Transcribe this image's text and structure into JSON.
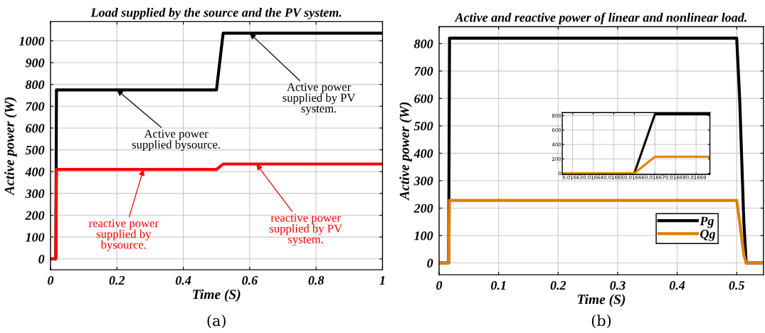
{
  "chart_data": [
    {
      "type": "line",
      "title": "Load supplied by the source and the PV system.",
      "xlabel": "Time (S)",
      "ylabel": "Active power (W)",
      "xlim": [
        0,
        1
      ],
      "ylim": [
        -50,
        1088
      ],
      "xticks": [
        0,
        0.2,
        0.4,
        0.6,
        0.8,
        1
      ],
      "yticks": [
        0,
        100,
        200,
        300,
        400,
        500,
        600,
        700,
        800,
        900,
        1000
      ],
      "grid": true,
      "legend": false,
      "x": [
        0,
        0.016,
        0.018,
        0.5,
        0.52,
        1
      ],
      "series": [
        {
          "color": "#000000",
          "values": [
            0,
            0,
            775,
            775,
            1035,
            1035
          ]
        },
        {
          "color": "#ff0000",
          "values": [
            0,
            0,
            410,
            410,
            435,
            435
          ]
        }
      ],
      "annotations": [
        {
          "text": "Active power\nsupplied bysource.",
          "x": 0.2,
          "y": 775
        },
        {
          "text": "Active power\nsupplied by PV\nsystem.",
          "x": 0.6,
          "y": 1035
        },
        {
          "text": "reactive power\nsupplied by\nbysource.",
          "x": 0.28,
          "y": 410
        },
        {
          "text": "reactive power\nsupplied by PV\nsystem.",
          "x": 0.62,
          "y": 435
        },
        "(a)"
      ]
    },
    {
      "type": "line",
      "title": "Active and reactive power of linear and nonlinear load.",
      "xlabel": "Time (S)",
      "ylabel": "Active power (W)",
      "xlim": [
        0,
        0.545
      ],
      "ylim": [
        -43,
        862
      ],
      "xticks": [
        0,
        0.1,
        0.2,
        0.3,
        0.4,
        0.5
      ],
      "yticks": [
        0,
        100,
        200,
        300,
        400,
        500,
        600,
        700,
        800
      ],
      "grid": true,
      "legend": "bottom right",
      "x": [
        0,
        0.016,
        0.0175,
        0.5,
        0.505,
        0.512,
        0.516,
        0.545
      ],
      "series": [
        {
          "name": "Pg",
          "color": "#000000",
          "values": [
            0,
            0,
            820,
            820,
            600,
            150,
            0,
            0
          ]
        },
        {
          "name": "Qg",
          "color": "#e08000",
          "values": [
            0,
            0,
            228,
            228,
            150,
            30,
            0,
            0
          ]
        }
      ],
      "annotations": [
        "(b)"
      ]
    },
    {
      "type": "line",
      "xlim": [
        0.016625,
        0.0166967
      ],
      "ylim": [
        -17,
        843
      ],
      "xticks": [
        0.01663,
        0.01664,
        0.01665,
        0.01666,
        0.01667,
        0.01668,
        0.01669
      ],
      "yticks": [
        0,
        200,
        400,
        600,
        800
      ],
      "grid": true,
      "legend": false,
      "x": [
        0.016625,
        0.01666,
        0.01667,
        0.0166967
      ],
      "series": [
        {
          "color": "#000000",
          "values": [
            0,
            0,
            820,
            820
          ]
        },
        {
          "color": "#e08000",
          "values": [
            0,
            0,
            230,
            230
          ]
        }
      ]
    }
  ]
}
